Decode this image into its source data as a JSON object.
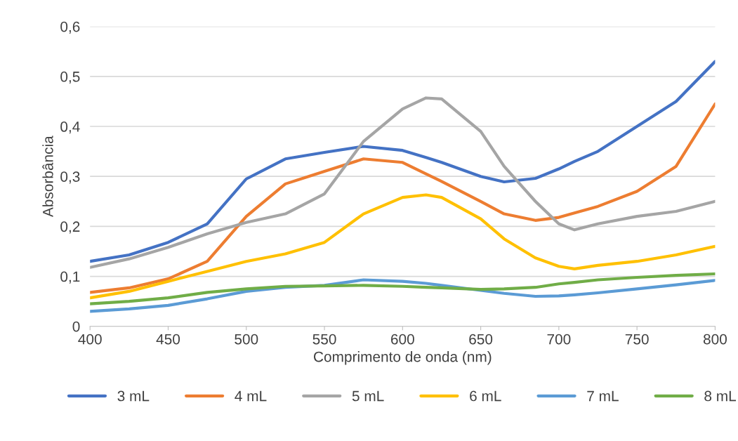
{
  "chart_data": {
    "type": "line",
    "xlabel": "Comprimento de onda (nm)",
    "ylabel": "Absorbância",
    "x": [
      400,
      425,
      450,
      475,
      500,
      525,
      550,
      575,
      600,
      615,
      625,
      650,
      665,
      685,
      700,
      710,
      725,
      750,
      775,
      800
    ],
    "series": [
      {
        "name": "3 mL",
        "color": "#4472c4",
        "values": [
          0.13,
          0.143,
          0.168,
          0.205,
          0.295,
          0.335,
          0.348,
          0.36,
          0.352,
          0.338,
          0.328,
          0.3,
          0.289,
          0.296,
          0.315,
          0.33,
          0.35,
          0.4,
          0.45,
          0.53
        ]
      },
      {
        "name": "4 mL",
        "color": "#ed7d31",
        "values": [
          0.068,
          0.077,
          0.095,
          0.13,
          0.22,
          0.285,
          0.31,
          0.335,
          0.328,
          0.305,
          0.29,
          0.25,
          0.225,
          0.212,
          0.218,
          0.227,
          0.24,
          0.27,
          0.32,
          0.445
        ]
      },
      {
        "name": "5 mL",
        "color": "#a5a5a5",
        "values": [
          0.118,
          0.135,
          0.158,
          0.185,
          0.208,
          0.225,
          0.265,
          0.37,
          0.435,
          0.457,
          0.455,
          0.39,
          0.32,
          0.25,
          0.205,
          0.193,
          0.205,
          0.22,
          0.23,
          0.25
        ]
      },
      {
        "name": "6 mL",
        "color": "#ffc000",
        "values": [
          0.057,
          0.07,
          0.09,
          0.11,
          0.13,
          0.145,
          0.168,
          0.225,
          0.258,
          0.263,
          0.258,
          0.215,
          0.175,
          0.137,
          0.12,
          0.115,
          0.122,
          0.13,
          0.143,
          0.16
        ]
      },
      {
        "name": "7 mL",
        "color": "#5b9bd5",
        "values": [
          0.03,
          0.035,
          0.042,
          0.055,
          0.07,
          0.078,
          0.082,
          0.093,
          0.09,
          0.086,
          0.082,
          0.072,
          0.066,
          0.06,
          0.061,
          0.063,
          0.067,
          0.075,
          0.083,
          0.092
        ]
      },
      {
        "name": "8 mL",
        "color": "#70ad47",
        "values": [
          0.045,
          0.05,
          0.057,
          0.068,
          0.075,
          0.08,
          0.081,
          0.082,
          0.08,
          0.078,
          0.077,
          0.074,
          0.075,
          0.078,
          0.085,
          0.088,
          0.093,
          0.098,
          0.102,
          0.105
        ]
      }
    ],
    "xlim": [
      400,
      800
    ],
    "xticks": [
      400,
      450,
      500,
      550,
      600,
      650,
      700,
      750,
      800
    ],
    "ylim": [
      0,
      0.6
    ],
    "yticks": [
      0,
      {
        "value": 0.1,
        "label": "0,1"
      },
      {
        "value": 0.2,
        "label": "0,2"
      },
      {
        "value": 0.3,
        "label": "0,3"
      },
      {
        "value": 0.4,
        "label": "0,4"
      },
      {
        "value": 0.5,
        "label": "0,5"
      },
      {
        "value": 0.6,
        "label": "0,6"
      }
    ],
    "grid": "y",
    "legend": "bottom",
    "marker": "none",
    "line_style": "solid"
  }
}
